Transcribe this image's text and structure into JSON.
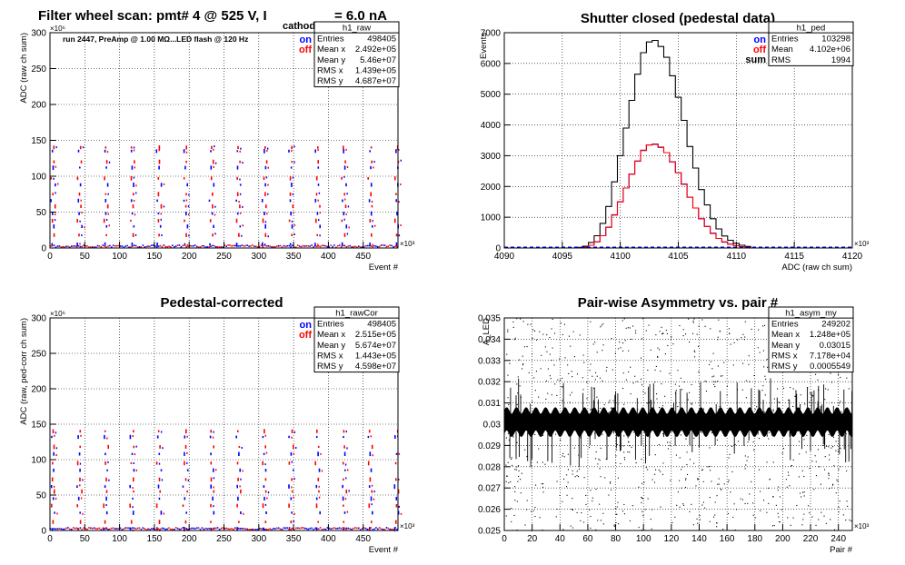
{
  "page_title": {
    "main": "Filter wheel scan: pmt#   4 @   525 V, I",
    "sub": "cathode",
    "tail": "= 6.0 nA"
  },
  "colors": {
    "on": "#0000ff",
    "off": "#ff0000",
    "sum": "#000000",
    "frame": "#000000",
    "grid": "#000000"
  },
  "chart_data": [
    {
      "id": "raw",
      "type": "scatter",
      "title": "",
      "xlabel": "Event #",
      "ylabel": "ADC (raw ch sum)",
      "x_exponent": "×10³",
      "y_exponent": "×10⁶",
      "xlim": [
        0,
        500
      ],
      "ylim": [
        0,
        300
      ],
      "xticks": [
        0,
        50,
        100,
        150,
        200,
        250,
        300,
        350,
        400,
        450
      ],
      "yticks": [
        0,
        50,
        100,
        150,
        200,
        250,
        300
      ],
      "grid": true,
      "annotation": "run 2447, PreAmp @ 1.00 MΩ...LED flash @  120 Hz",
      "legend": [
        "on",
        "off"
      ],
      "stats": {
        "name": "h1_raw",
        "rows": [
          [
            "Entries",
            "498405"
          ],
          [
            "Mean x",
            "2.492e+05"
          ],
          [
            "Mean y",
            "5.46e+07"
          ],
          [
            "RMS x",
            "1.439e+05"
          ],
          [
            "RMS y",
            "4.687e+07"
          ]
        ]
      },
      "level_period": 38,
      "levels": [
        5,
        18,
        30,
        38,
        48,
        58,
        66,
        75,
        88,
        97,
        112,
        120,
        135,
        140
      ]
    },
    {
      "id": "ped",
      "type": "line",
      "title": "Shutter closed (pedestal data)",
      "xlabel": "ADC (raw ch sum)",
      "ylabel": "Events",
      "x_exponent": "×10³",
      "xlim": [
        4090,
        4120
      ],
      "ylim": [
        0,
        7000
      ],
      "xticks": [
        4090,
        4095,
        4100,
        4105,
        4110,
        4115,
        4120
      ],
      "yticks": [
        0,
        1000,
        2000,
        3000,
        4000,
        5000,
        6000,
        7000
      ],
      "grid": true,
      "legend": [
        "on",
        "off",
        "sum"
      ],
      "stats": {
        "name": "h1_ped",
        "rows": [
          [
            "Entries",
            "103298"
          ],
          [
            "Mean",
            "4.102e+06"
          ],
          [
            "RMS",
            "1994"
          ]
        ]
      },
      "bin_centers": [
        4096.5,
        4097.0,
        4097.5,
        4098.0,
        4098.5,
        4099.0,
        4099.5,
        4100.0,
        4100.5,
        4101.0,
        4101.5,
        4102.0,
        4102.5,
        4103.0,
        4103.5,
        4104.0,
        4104.5,
        4105.0,
        4105.5,
        4106.0,
        4106.5,
        4107.0,
        4107.5,
        4108.0,
        4108.5,
        4109.0,
        4109.5,
        4110.0,
        4110.5,
        4111.0
      ],
      "series": [
        {
          "name": "sum",
          "values": [
            20,
            60,
            180,
            400,
            800,
            1350,
            2150,
            3000,
            3900,
            4800,
            5650,
            6350,
            6700,
            6750,
            6550,
            6200,
            5600,
            4900,
            4150,
            3300,
            2600,
            1900,
            1400,
            950,
            620,
            390,
            250,
            150,
            90,
            50
          ]
        },
        {
          "name": "on",
          "values": [
            10,
            30,
            90,
            200,
            400,
            680,
            1080,
            1500,
            1950,
            2400,
            2820,
            3170,
            3350,
            3380,
            3270,
            3100,
            2800,
            2450,
            2080,
            1650,
            1300,
            950,
            700,
            480,
            310,
            190,
            125,
            75,
            45,
            25
          ]
        },
        {
          "name": "off",
          "values": [
            10,
            30,
            90,
            200,
            400,
            670,
            1070,
            1500,
            1950,
            2400,
            2830,
            3180,
            3350,
            3370,
            3280,
            3100,
            2800,
            2450,
            2070,
            1650,
            1300,
            950,
            700,
            470,
            310,
            200,
            125,
            75,
            45,
            25
          ]
        }
      ]
    },
    {
      "id": "rawCor",
      "type": "scatter",
      "title": "Pedestal-corrected",
      "xlabel": "Event #",
      "ylabel": "ADC (raw, ped-corr ch sum)",
      "x_exponent": "×10³",
      "y_exponent": "×10⁶",
      "xlim": [
        0,
        500
      ],
      "ylim": [
        0,
        300
      ],
      "xticks": [
        0,
        50,
        100,
        150,
        200,
        250,
        300,
        350,
        400,
        450
      ],
      "yticks": [
        0,
        50,
        100,
        150,
        200,
        250,
        300
      ],
      "grid": true,
      "legend": [
        "on",
        "off"
      ],
      "stats": {
        "name": "h1_rawCor",
        "rows": [
          [
            "Entries",
            "498405"
          ],
          [
            "Mean x",
            "2.515e+05"
          ],
          [
            "Mean y",
            "5.674e+07"
          ],
          [
            "RMS x",
            "1.443e+05"
          ],
          [
            "RMS y",
            "4.598e+07"
          ]
        ]
      },
      "level_period": 38,
      "levels": [
        2,
        12,
        25,
        35,
        45,
        55,
        62,
        72,
        85,
        95,
        108,
        118,
        132,
        140
      ]
    },
    {
      "id": "asym",
      "type": "scatter",
      "title": "Pair-wise Asymmetry vs. pair #",
      "xlabel": "Pair #",
      "ylabel": "A_LED",
      "x_exponent": "×10³",
      "xlim": [
        0,
        250
      ],
      "ylim": [
        0.025,
        0.035
      ],
      "xticks": [
        0,
        20,
        40,
        60,
        80,
        100,
        120,
        140,
        160,
        180,
        200,
        220,
        240
      ],
      "yticks": [
        0.025,
        0.026,
        0.027,
        0.028,
        0.029,
        0.03,
        0.031,
        0.032,
        0.033,
        0.034,
        0.035
      ],
      "grid": true,
      "stats": {
        "name": "h1_asym_my",
        "rows": [
          [
            "Entries",
            "249202"
          ],
          [
            "Mean x",
            "1.248e+05"
          ],
          [
            "Mean y",
            "0.03015"
          ],
          [
            "RMS x",
            "7.178e+04"
          ],
          [
            "RMS y",
            "0.0005549"
          ]
        ]
      },
      "band_center": 0.0301,
      "band_halfwidth": 0.0006
    }
  ]
}
